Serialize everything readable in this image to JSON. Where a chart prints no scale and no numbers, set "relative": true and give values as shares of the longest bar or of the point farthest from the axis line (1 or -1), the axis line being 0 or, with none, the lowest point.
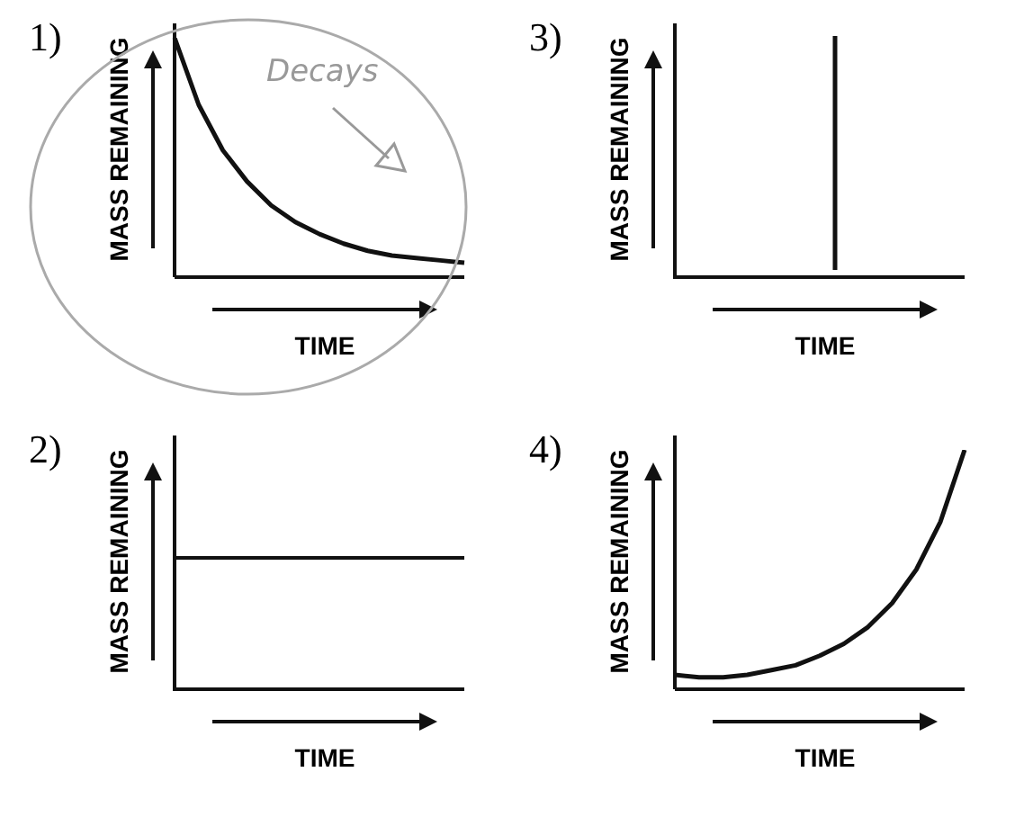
{
  "chart_data": [
    {
      "type": "line",
      "title": "1)",
      "xlabel": "TIME",
      "ylabel": "MASS REMAINING",
      "relative": true,
      "categories": [
        null,
        null,
        null,
        null,
        null,
        null,
        null,
        null,
        null,
        null,
        null,
        null,
        null
      ],
      "annotations": [
        "Decays"
      ],
      "series": [
        {
          "color": "#111111",
          "values": [
            1.0,
            0.72,
            0.53,
            0.4,
            0.3,
            0.23,
            0.18,
            0.14,
            0.11,
            0.09,
            0.08,
            0.07,
            0.06
          ]
        }
      ]
    },
    {
      "type": "other",
      "title": "3)",
      "xlabel": "TIME",
      "ylabel": "MASS REMAINING"
    },
    {
      "type": "other",
      "title": "2)",
      "xlabel": "TIME",
      "ylabel": "MASS REMAINING"
    },
    {
      "type": "line",
      "title": "4)",
      "xlabel": "TIME",
      "ylabel": "MASS REMAINING",
      "relative": true,
      "categories": [
        null,
        null,
        null,
        null,
        null,
        null,
        null,
        null,
        null,
        null,
        null,
        null,
        null
      ],
      "series": [
        {
          "color": "#111111",
          "values": [
            0.06,
            0.05,
            0.05,
            0.06,
            0.08,
            0.1,
            0.14,
            0.19,
            0.26,
            0.36,
            0.5,
            0.7,
            1.0
          ]
        }
      ]
    }
  ]
}
